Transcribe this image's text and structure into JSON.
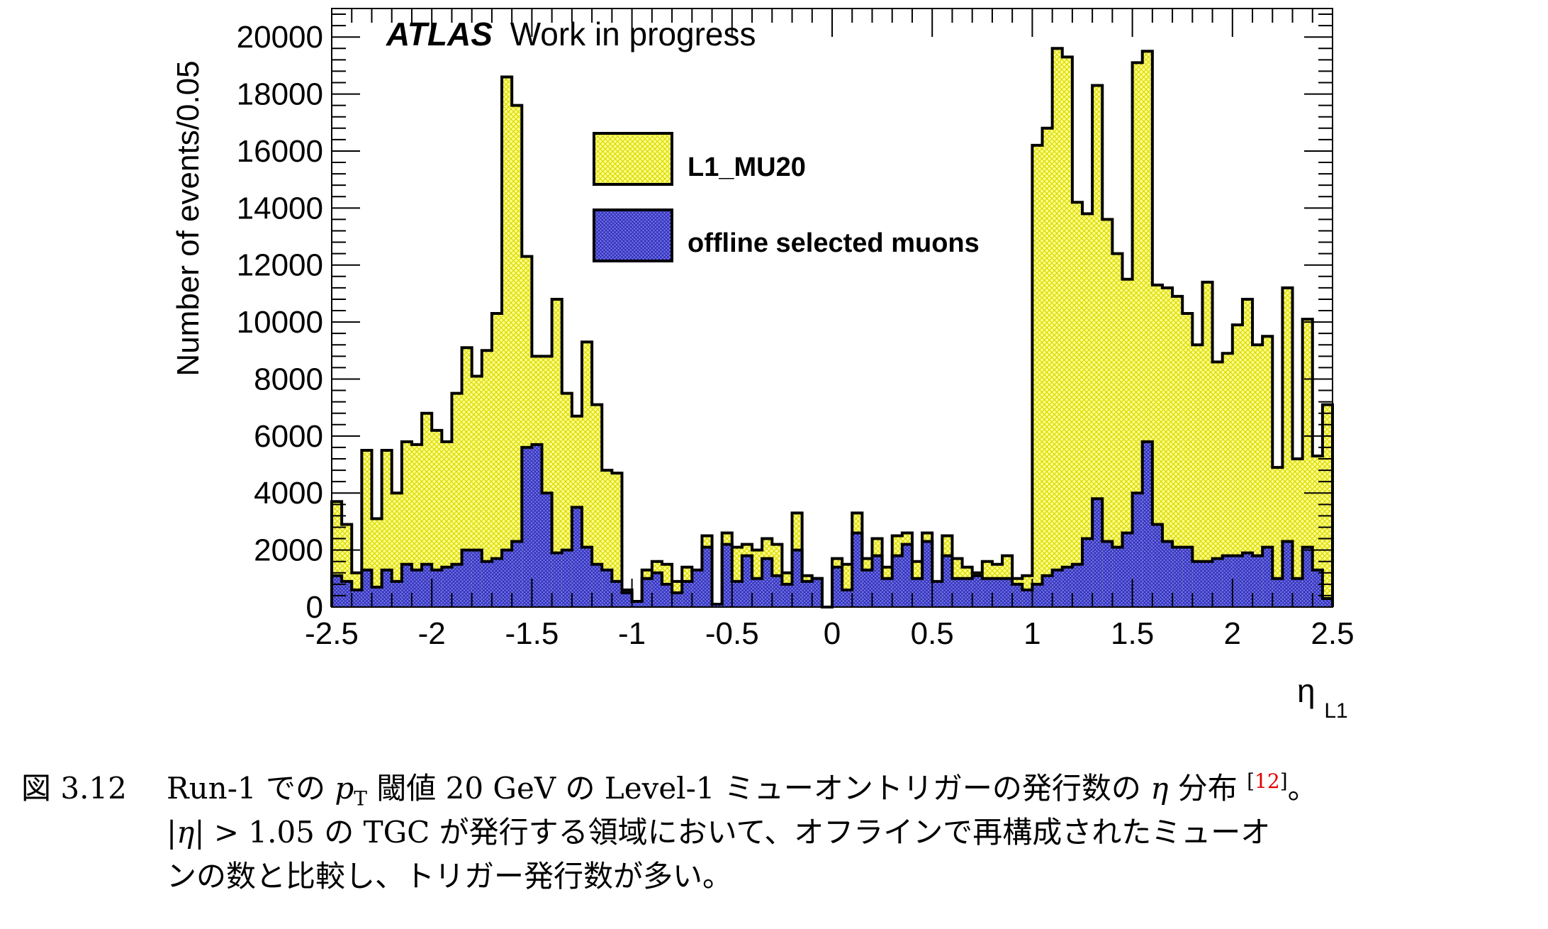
{
  "chart_data": {
    "type": "histogram",
    "title": "",
    "watermark_bold": "ATLAS",
    "watermark_text": "Work in progress",
    "xlabel": "η",
    "xlabel_sub": "L1",
    "ylabel": "Number of events/0.05",
    "xlim": [
      -2.5,
      2.5
    ],
    "ylim": [
      0,
      21000
    ],
    "bin_width": 0.05,
    "x_ticks": [
      -2.5,
      -2,
      -1.5,
      -1,
      -0.5,
      0,
      0.5,
      1,
      1.5,
      2,
      2.5
    ],
    "x_tick_labels": [
      "-2.5",
      "-2",
      "-1.5",
      "-1",
      "-0.5",
      "0",
      "0.5",
      "1",
      "1.5",
      "2",
      "2.5"
    ],
    "y_ticks": [
      0,
      2000,
      4000,
      6000,
      8000,
      10000,
      12000,
      14000,
      16000,
      18000,
      20000
    ],
    "y_tick_labels": [
      "0",
      "2000",
      "4000",
      "6000",
      "8000",
      "10000",
      "12000",
      "14000",
      "16000",
      "18000",
      "20000"
    ],
    "legend_position": "top-center",
    "series": [
      {
        "name": "L1_MU20",
        "fill": "#ffff8c",
        "hatch": "#d8d800",
        "edge": "#000000",
        "values": [
          3700,
          2900,
          1200,
          5500,
          3100,
          5500,
          4000,
          5800,
          5700,
          6800,
          6200,
          5800,
          7500,
          9100,
          8100,
          9000,
          10300,
          18600,
          17600,
          12300,
          8800,
          8800,
          10800,
          7500,
          6700,
          9300,
          7100,
          4800,
          4700,
          600,
          200,
          1300,
          1600,
          1500,
          900,
          1400,
          1200,
          2500,
          100,
          2600,
          2100,
          2200,
          2000,
          2400,
          2200,
          1200,
          3300,
          1100,
          1000,
          0,
          1700,
          1500,
          3300,
          1700,
          2400,
          1400,
          2500,
          2600,
          1600,
          2600,
          700,
          2500,
          1700,
          1400,
          1200,
          1600,
          1500,
          1800,
          1000,
          1100,
          16200,
          16800,
          19600,
          19300,
          14200,
          13800,
          18300,
          13600,
          12400,
          11500,
          19100,
          19500,
          11300,
          11200,
          10900,
          10300,
          9200,
          11400,
          8600,
          8900,
          9900,
          10800,
          9200,
          9500,
          4900,
          11200,
          5200,
          10100,
          5300,
          7100
        ]
      },
      {
        "name": "offline selected muons",
        "fill": "#7373e8",
        "hatch": "#2a2ab4",
        "edge": "#000000",
        "values": [
          1100,
          900,
          600,
          1300,
          700,
          1300,
          900,
          1500,
          1300,
          1500,
          1300,
          1400,
          1500,
          2000,
          2000,
          1600,
          1700,
          2000,
          2300,
          5600,
          5700,
          4000,
          1900,
          2000,
          3500,
          2100,
          1500,
          1300,
          900,
          500,
          200,
          1000,
          1200,
          800,
          500,
          900,
          1300,
          2100,
          100,
          2200,
          900,
          1800,
          1000,
          1700,
          1100,
          800,
          2000,
          900,
          1000,
          0,
          1400,
          600,
          2600,
          1300,
          1800,
          1000,
          1800,
          2200,
          1000,
          2300,
          900,
          1800,
          1000,
          1000,
          1100,
          1000,
          1000,
          1000,
          800,
          600,
          800,
          1100,
          1300,
          1400,
          1500,
          2400,
          3800,
          2300,
          2100,
          2600,
          4000,
          5800,
          2900,
          2300,
          2100,
          2100,
          1600,
          1600,
          1700,
          1800,
          1800,
          1900,
          1800,
          2100,
          1000,
          2300,
          1000,
          2100,
          1300,
          300
        ]
      }
    ]
  },
  "caption": {
    "number": "図 3.12",
    "l1_a": "Run-1 での ",
    "l1_p": "p",
    "l1_sub": "T",
    "l1_b": " 閾値 20 GeV の Level-1 ミューオントリガーの発行数の ",
    "l1_eta": "η",
    "l1_c": " 分布 ",
    "ref_open": "[",
    "ref_num": "12",
    "ref_close": "]",
    "l1_end": "。",
    "l2_a": "|",
    "l2_eta": "η",
    "l2_b": "| > 1.05 の TGC が発行する領域において、オフラインで再構成されたミューオ",
    "l3": "ンの数と比較し、トリガー発行数が多い。"
  }
}
